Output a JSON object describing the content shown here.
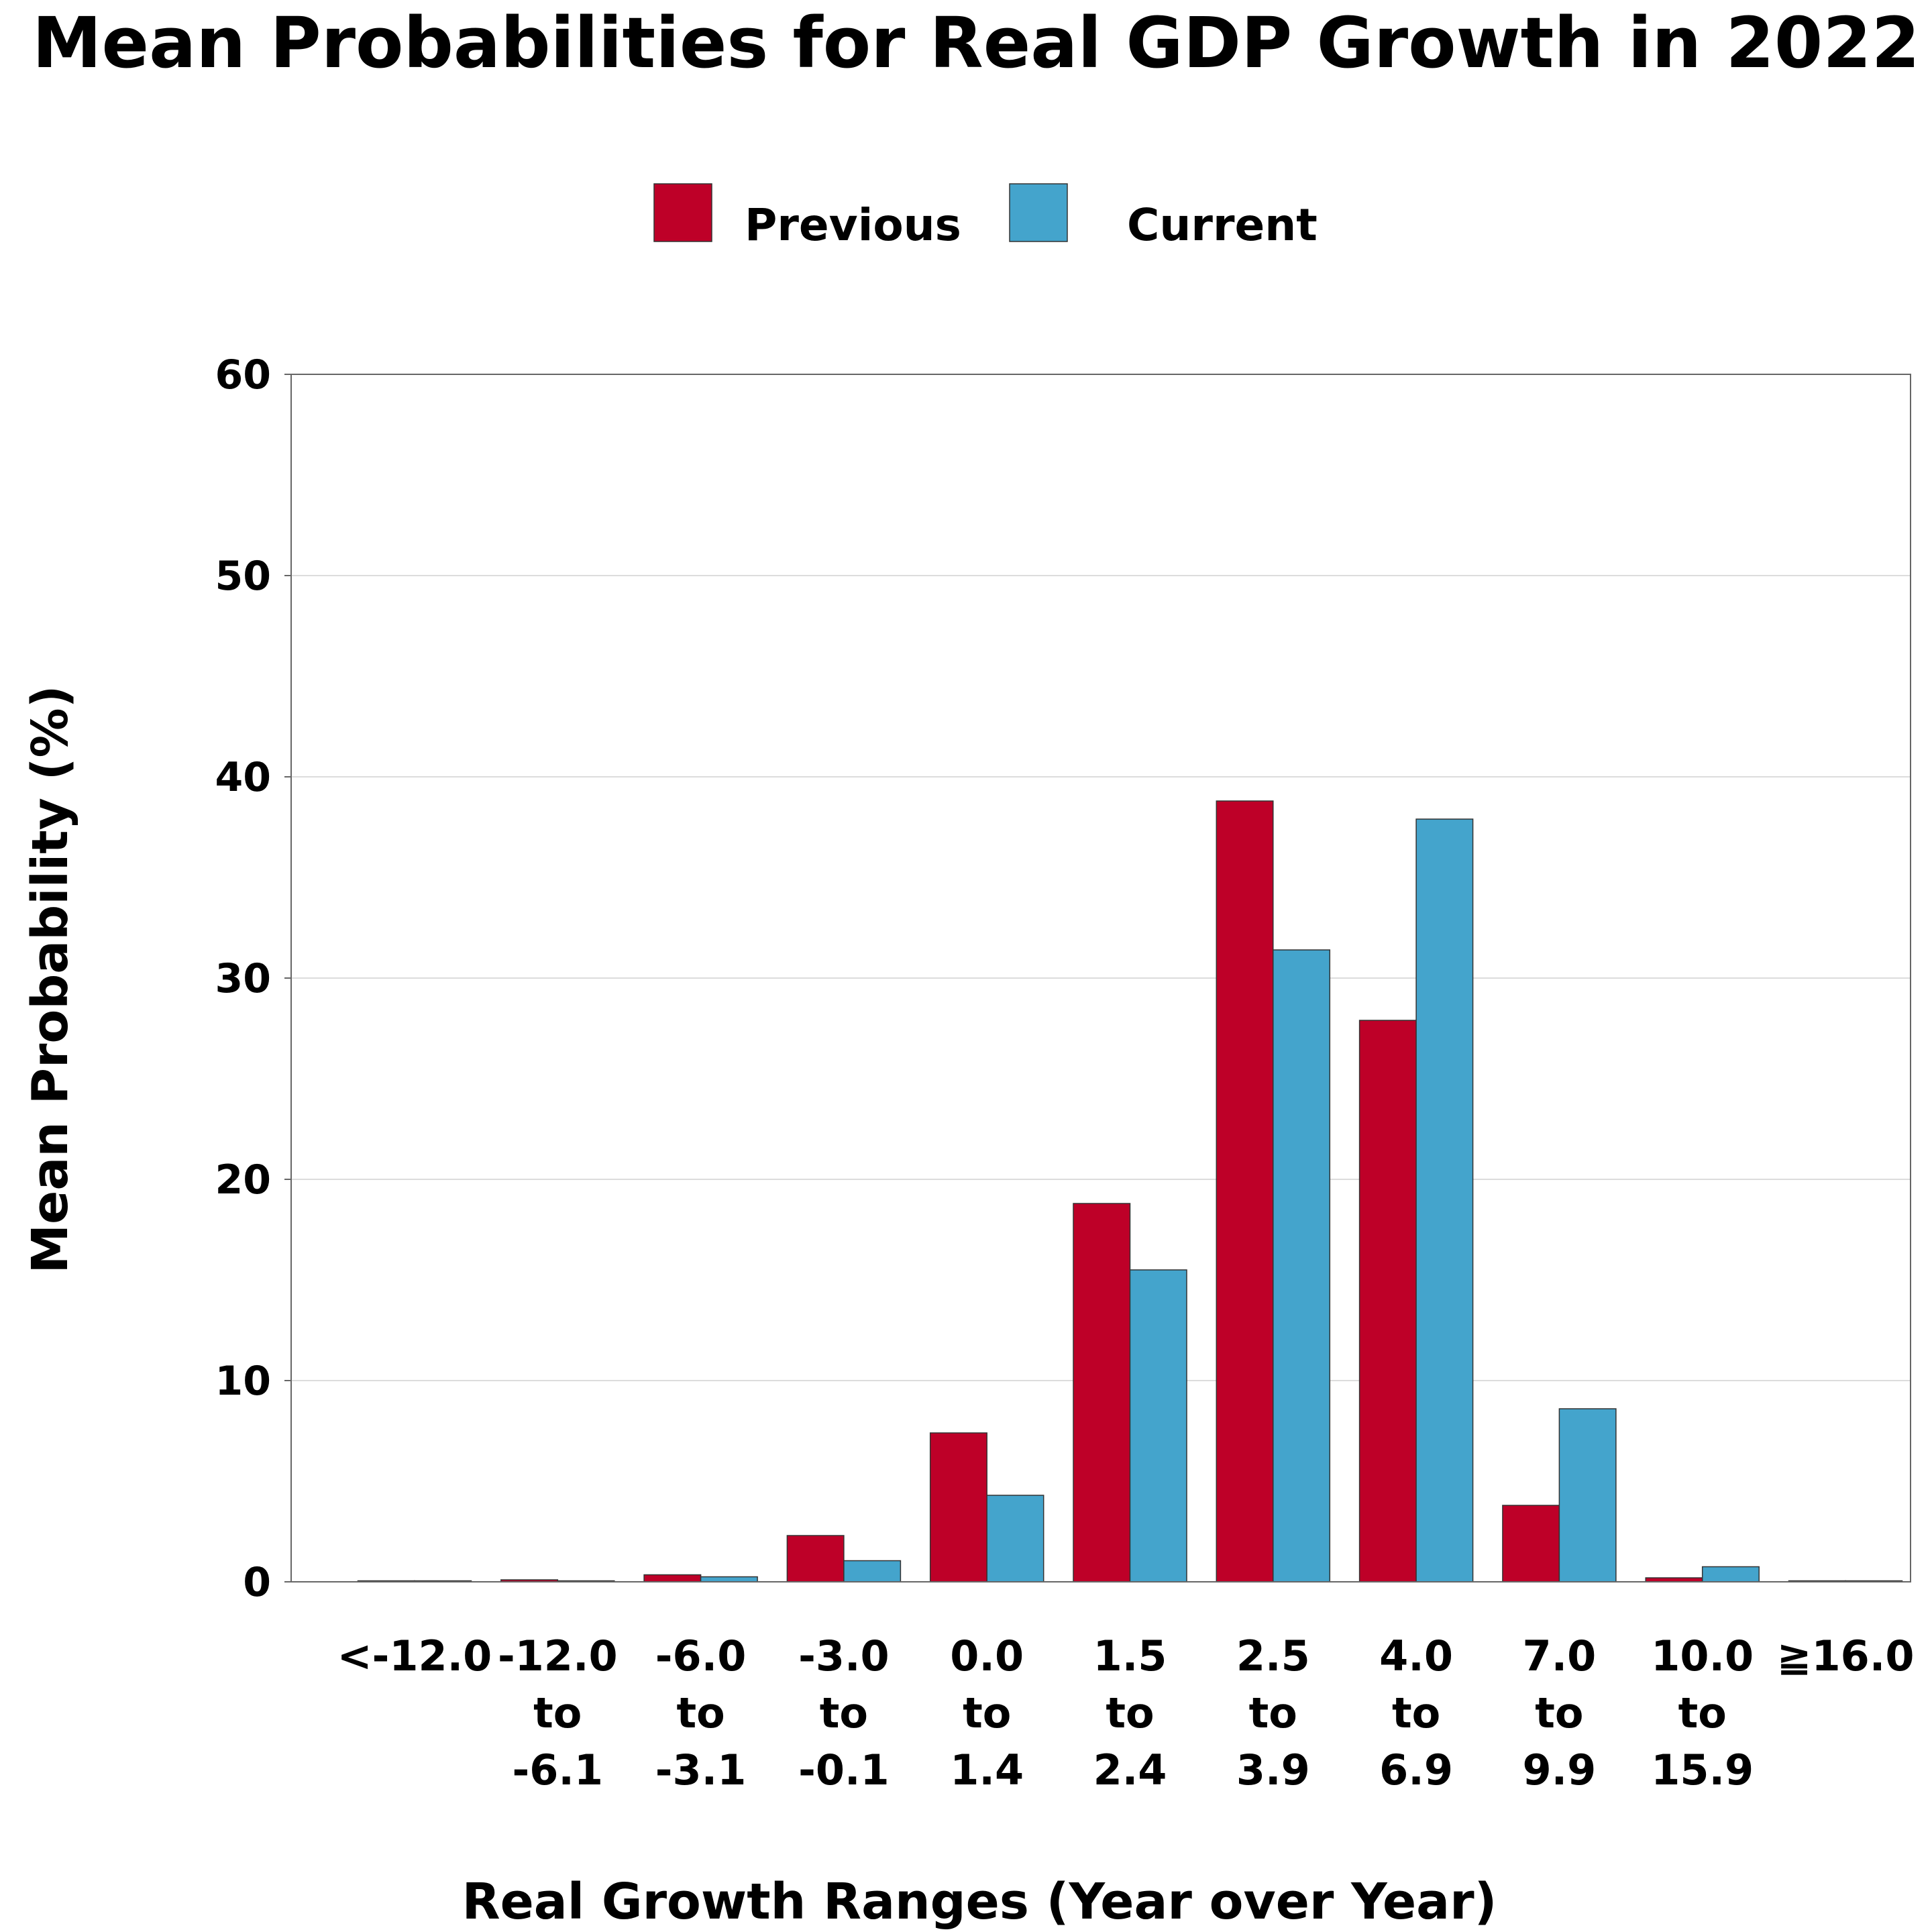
{
  "chart_data": {
    "type": "bar",
    "title": "Mean Probabilities for Real GDP Growth in 2022",
    "xlabel": "Real Growth Ranges (Year over Year)",
    "ylabel": "Mean Probability (%)",
    "ylim": [
      0,
      60
    ],
    "yticks": [
      0,
      10,
      20,
      30,
      40,
      50,
      60
    ],
    "grid": true,
    "legend_position": "top-center",
    "categories": [
      [
        "<-12.0"
      ],
      [
        "-12.0",
        "to",
        "-6.1"
      ],
      [
        "-6.0",
        "to",
        "-3.1"
      ],
      [
        "-3.0",
        "to",
        "-0.1"
      ],
      [
        "0.0",
        "to",
        "1.4"
      ],
      [
        "1.5",
        "to",
        "2.4"
      ],
      [
        "2.5",
        "to",
        "3.9"
      ],
      [
        "4.0",
        "to",
        "6.9"
      ],
      [
        "7.0",
        "to",
        "9.9"
      ],
      [
        "10.0",
        "to",
        "15.9"
      ],
      [
        "≧16.0"
      ]
    ],
    "series": [
      {
        "name": "Previous",
        "color": "#BE0028",
        "values": [
          0.05,
          0.1,
          0.35,
          2.3,
          7.4,
          18.8,
          38.8,
          27.9,
          3.8,
          0.2,
          0.0
        ]
      },
      {
        "name": "Current",
        "color": "#44A4CC",
        "values": [
          0.0,
          0.05,
          0.25,
          1.05,
          4.3,
          15.5,
          31.4,
          37.9,
          8.6,
          0.75,
          0.05
        ]
      }
    ]
  }
}
